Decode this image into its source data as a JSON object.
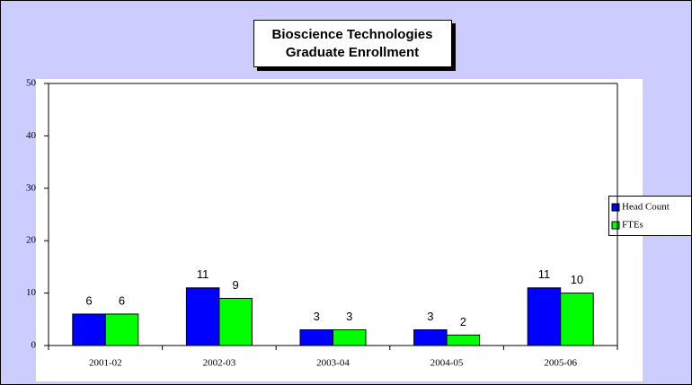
{
  "chart_data": {
    "type": "bar",
    "title": [
      "Bioscience Technologies",
      "Graduate Enrollment"
    ],
    "categories": [
      "2001-02",
      "2002-03",
      "2003-04",
      "2004-05",
      "2005-06"
    ],
    "series": [
      {
        "name": "Head Count",
        "color": "#0000ff",
        "values": [
          6,
          11,
          3,
          3,
          11
        ]
      },
      {
        "name": "FTEs",
        "color": "#00ff00",
        "values": [
          6,
          9,
          3,
          2,
          10
        ]
      }
    ],
    "ylim": [
      0,
      50
    ],
    "yticks": [
      0,
      10,
      20,
      30,
      40,
      50
    ],
    "legend": "right"
  }
}
